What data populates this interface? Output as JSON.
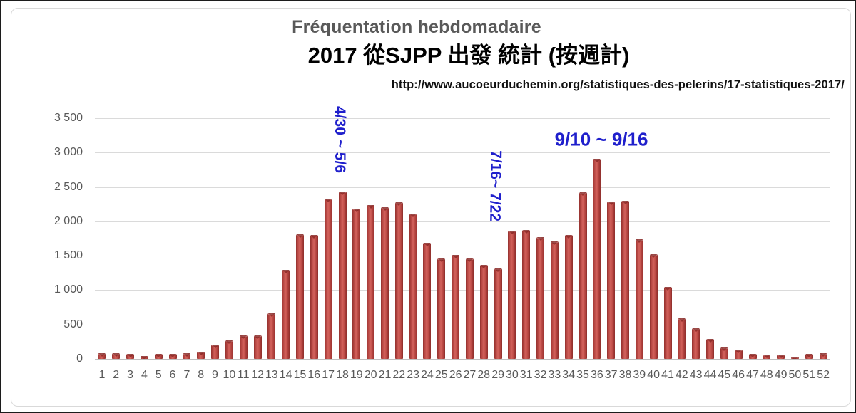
{
  "header": {
    "title": "Fréquentation hebdomadaire",
    "subtitle": "2017 從SJPP 出發 統計 (按週計)",
    "source_url": "http://www.aucoeurduchemin.org/statistiques-des-pelerins/17-statistiques-2017/"
  },
  "colors": {
    "bar_main": "#b2433f",
    "bar_edge": "#8c2e2b",
    "annotation_blue": "#2020cc",
    "title_gray": "#595959",
    "subtitle_black": "#000000",
    "axis_text_gray": "#595959",
    "gridline_gray": "#d9d9d9"
  },
  "chart_data": {
    "type": "bar",
    "title": "Fréquentation hebdomadaire",
    "subtitle": "2017 從SJPP 出發 統計 (按週計)",
    "source": "http://www.aucoeurduchemin.org/statistiques-des-pelerins/17-statistiques-2017/",
    "xlabel": "",
    "ylabel": "",
    "ylim": [
      0,
      3500
    ],
    "ytick_interval": 500,
    "ytick_labels": [
      "0",
      "500",
      "1 000",
      "1 500",
      "2 000",
      "2 500",
      "3 000",
      "3 500"
    ],
    "grid": true,
    "legend": false,
    "categories": [
      "1",
      "2",
      "3",
      "4",
      "5",
      "6",
      "7",
      "8",
      "9",
      "10",
      "11",
      "12",
      "13",
      "14",
      "15",
      "16",
      "17",
      "18",
      "19",
      "20",
      "21",
      "22",
      "23",
      "24",
      "25",
      "26",
      "27",
      "28",
      "29",
      "30",
      "31",
      "32",
      "33",
      "34",
      "35",
      "36",
      "37",
      "38",
      "39",
      "40",
      "41",
      "42",
      "43",
      "44",
      "45",
      "46",
      "47",
      "48",
      "49",
      "50",
      "51",
      "52"
    ],
    "values": [
      85,
      85,
      70,
      40,
      75,
      70,
      80,
      100,
      210,
      270,
      345,
      340,
      660,
      1290,
      1810,
      1800,
      2330,
      2430,
      2190,
      2240,
      2210,
      2280,
      2110,
      1690,
      1460,
      1510,
      1455,
      1365,
      1320,
      1860,
      1870,
      1770,
      1710,
      1800,
      2420,
      2910,
      2290,
      2300,
      1740,
      1520,
      1050,
      590,
      450,
      290,
      170,
      130,
      70,
      60,
      65,
      30,
      70,
      85
    ],
    "annotations": [
      {
        "text": "4/30 ~ 5/6",
        "week": 18,
        "rotated": true
      },
      {
        "text": "7/16~ 7/22",
        "week": 29,
        "rotated": true
      },
      {
        "text": "9/10 ~ 9/16",
        "week": 36,
        "rotated": false
      }
    ]
  }
}
